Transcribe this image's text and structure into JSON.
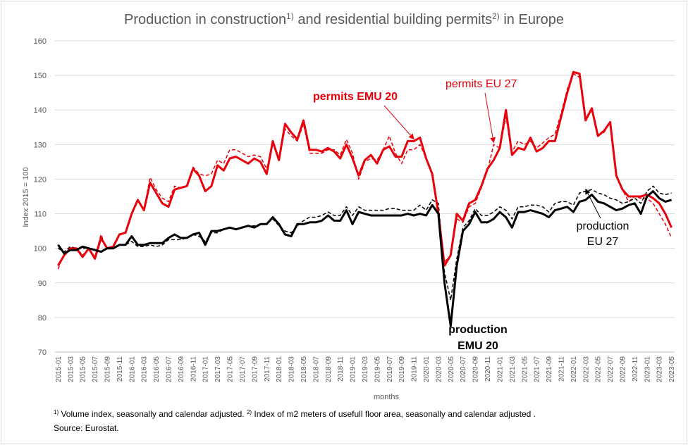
{
  "title": {
    "part1": "Production in construction",
    "sup1": "1)",
    "part2": " and residential building permits",
    "sup2": "2)",
    "part3": " in Europe"
  },
  "footnote": {
    "sup1": "1)",
    "text1": " Volume index, seasonally and calendar adjusted. ",
    "sup2": "2)",
    "text2": " Index of m2 meters of usefull floor area, seasonally and calendar adjusted .",
    "source": "Source: Eurostat."
  },
  "colors": {
    "red": "#e8000b",
    "black": "#000000",
    "grid": "#d9d9d9",
    "text": "#595959"
  },
  "chart_data": {
    "type": "line",
    "ylabel": "Index 2015 = 100",
    "xlabel": "months",
    "ylim": [
      70,
      160
    ],
    "yticks": [
      70,
      80,
      90,
      100,
      110,
      120,
      130,
      140,
      150,
      160
    ],
    "x_start": "2015-01",
    "x_end": "2023-05",
    "grid": "horizontal",
    "annotations": [
      {
        "text": "permits EMU 20",
        "color": "#e8000b",
        "bold": true
      },
      {
        "text": "permits EU 27",
        "color": "#e8000b",
        "bold": false
      },
      {
        "text": "production",
        "color": "#000000",
        "bold": false
      },
      {
        "text": "EU 27",
        "color": "#000000",
        "bold": false
      },
      {
        "text": "production",
        "color": "#000000",
        "bold": true
      },
      {
        "text": "EMU 20",
        "color": "#000000",
        "bold": true
      }
    ],
    "series": [
      {
        "key": "permits_emu20",
        "color": "#e8000b",
        "dashed": false,
        "width": 3,
        "values": [
          95,
          98,
          100,
          100,
          97.5,
          100,
          97,
          103,
          100,
          100.5,
          104,
          104.5,
          110,
          114,
          111,
          119,
          116,
          113,
          112,
          117,
          117.5,
          118,
          123,
          121,
          116.5,
          118,
          124,
          122.5,
          126,
          126.5,
          125.5,
          124.5,
          126,
          125,
          121.5,
          131,
          125.5,
          136,
          133.5,
          131.5,
          137,
          128.5,
          128.5,
          128,
          129,
          128,
          126,
          130,
          126,
          121,
          125.5,
          127,
          124.5,
          128.5,
          129.5,
          126.5,
          126.5,
          131,
          131,
          132,
          126,
          121.5,
          110,
          95,
          98,
          110,
          108,
          113,
          114,
          118,
          123,
          125.5,
          129,
          140,
          127,
          129,
          128.5,
          132,
          128,
          129,
          131,
          131,
          138,
          145,
          151,
          150.5,
          137,
          140.5,
          132.5,
          134,
          136.5,
          121,
          117,
          115,
          115,
          115,
          115.5,
          114.5,
          113,
          110,
          106
        ]
      },
      {
        "key": "permits_eu27",
        "color": "#e8000b",
        "dashed": true,
        "width": 1.5,
        "values": [
          94,
          98.5,
          100,
          100,
          98,
          100,
          97.5,
          104,
          99.5,
          100.5,
          104,
          104.5,
          110,
          114,
          111,
          120.5,
          117,
          114.5,
          113.5,
          118,
          117.5,
          118,
          123.5,
          121.5,
          121,
          121.5,
          125.5,
          124.5,
          128.5,
          128.5,
          127.5,
          126.5,
          127,
          126.5,
          123,
          130,
          126,
          134.5,
          132.5,
          131,
          136,
          127.5,
          127.5,
          127.5,
          128.5,
          128.5,
          127,
          131.5,
          127.5,
          120,
          125,
          126,
          125.5,
          128.5,
          132.5,
          127.5,
          124.5,
          128.5,
          128.5,
          130,
          126,
          121,
          109,
          96,
          98,
          108.5,
          107.5,
          112,
          113,
          117.5,
          122.5,
          130,
          129,
          138,
          128,
          131,
          130,
          131,
          129,
          130.5,
          132,
          133,
          139,
          146,
          150.5,
          149.5,
          138,
          140,
          132.5,
          133.5,
          136.5,
          121.5,
          117,
          113.5,
          115,
          114.5,
          114.5,
          113,
          110,
          107,
          103
        ]
      },
      {
        "key": "production_emu20",
        "color": "#000000",
        "dashed": false,
        "width": 3,
        "values": [
          101,
          98.5,
          99.5,
          99.5,
          100.5,
          100,
          99.5,
          99,
          100,
          100,
          101,
          101,
          103.5,
          101,
          101,
          101.5,
          101.5,
          101.5,
          103,
          104,
          103,
          103,
          104,
          104.5,
          101,
          105,
          105,
          105.5,
          106,
          105.5,
          106,
          106.5,
          106,
          107,
          107,
          109,
          107,
          104,
          103.5,
          107,
          107,
          107.5,
          107.5,
          108,
          109.5,
          108,
          108,
          111,
          107,
          110.5,
          110,
          109.5,
          109.5,
          109.5,
          109.5,
          109.5,
          109.5,
          110,
          109.5,
          110,
          109.5,
          112.5,
          110,
          90,
          77.5,
          95,
          105,
          107,
          110.5,
          107.5,
          107.5,
          108.5,
          110.5,
          109,
          106,
          110.5,
          110.5,
          111,
          110.5,
          110,
          109,
          111,
          111.5,
          112,
          110.5,
          113.5,
          114,
          115.5,
          113.5,
          113,
          112,
          111,
          111.5,
          112.5,
          113,
          110,
          115,
          116.5,
          114.5,
          113.5,
          114
        ]
      },
      {
        "key": "production_eu27",
        "color": "#000000",
        "dashed": true,
        "width": 1.5,
        "values": [
          100,
          99,
          100.5,
          100,
          100,
          100,
          99.5,
          99,
          100,
          100,
          101,
          101,
          102,
          100.5,
          100.5,
          101,
          100.5,
          101,
          102.5,
          102.5,
          102.5,
          103,
          104,
          103.5,
          102,
          104.5,
          104.5,
          105.5,
          106,
          105.5,
          106,
          106.5,
          106.5,
          107,
          107,
          108.5,
          106.5,
          105,
          104.5,
          106.5,
          108,
          109,
          109,
          109.5,
          110.5,
          109.5,
          109.5,
          112,
          109.5,
          112,
          111,
          111,
          111,
          111,
          111.5,
          111.5,
          111,
          111,
          111,
          112.5,
          111,
          114,
          113,
          93,
          85,
          97,
          106,
          108,
          111.5,
          109.5,
          109.5,
          110.5,
          112,
          111,
          108.5,
          112,
          112,
          112.5,
          112.5,
          112,
          110.5,
          113,
          113.5,
          113.5,
          112.5,
          116,
          116.5,
          117,
          116,
          115.5,
          114.5,
          114,
          113,
          113.5,
          114.5,
          113,
          116.5,
          118,
          116,
          115.5,
          116
        ]
      }
    ]
  }
}
